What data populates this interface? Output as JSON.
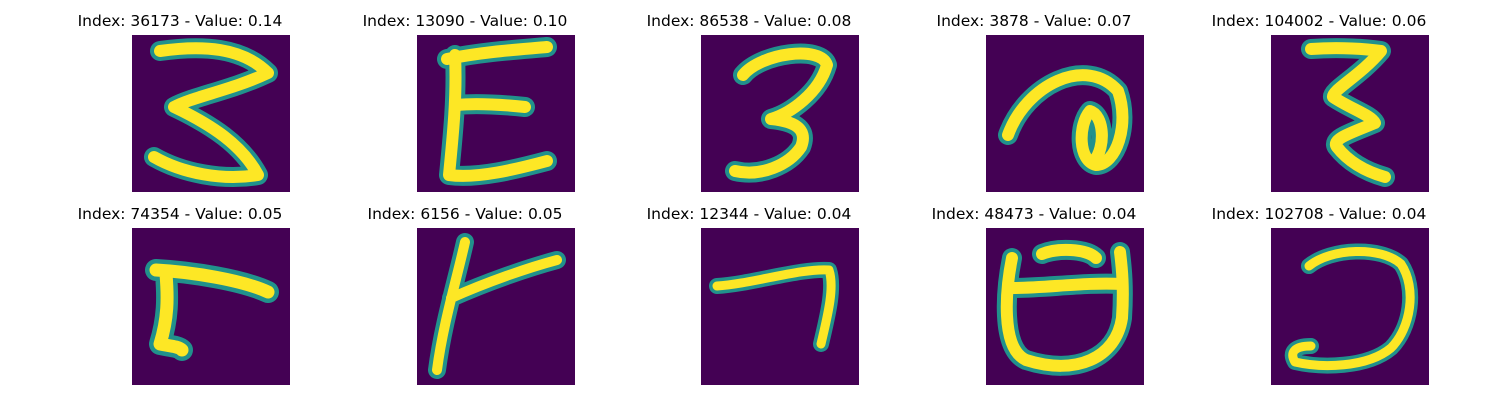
{
  "colors": {
    "background": "#440154",
    "stroke_edge": "#21918c",
    "stroke_core": "#fde725"
  },
  "panels": [
    {
      "title": "Index: 36173 - Value: 0.14",
      "glyph": "three-like-stroke"
    },
    {
      "title": "Index: 13090 - Value: 0.10",
      "glyph": "e-like-stroke"
    },
    {
      "title": "Index: 86538 - Value: 0.08",
      "glyph": "three-like-stroke"
    },
    {
      "title": "Index: 3878 - Value: 0.07",
      "glyph": "loop-stroke"
    },
    {
      "title": "Index: 104002 - Value: 0.06",
      "glyph": "three-like-stroke"
    },
    {
      "title": "Index: 74354 - Value: 0.05",
      "glyph": "l-like-stroke"
    },
    {
      "title": "Index: 6156 - Value: 0.05",
      "glyph": "branch-stroke"
    },
    {
      "title": "Index: 12344 - Value: 0.04",
      "glyph": "seven-like-stroke"
    },
    {
      "title": "Index: 48473 - Value: 0.04",
      "glyph": "cup-stroke"
    },
    {
      "title": "Index: 102708 - Value: 0.04",
      "glyph": "hook-stroke"
    }
  ]
}
